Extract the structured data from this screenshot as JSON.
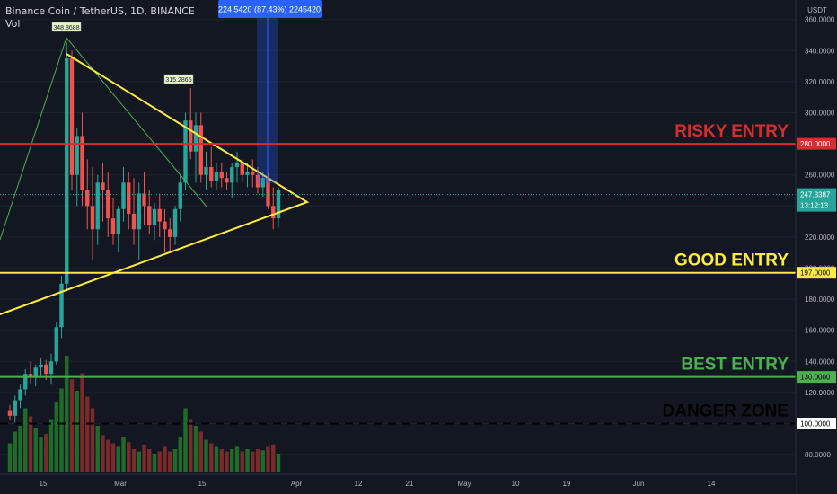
{
  "header": {
    "title": "Binance Coin / TetherUS, 1D, BINANCE",
    "indicator": "Vol"
  },
  "colors": {
    "background": "#131722",
    "up": "#26a69a",
    "down": "#ef5350",
    "vol_up": "#1f6b2a",
    "vol_down": "#7a2a2a",
    "triangle": "#ffeb3b",
    "risky": "#d32f2f",
    "good": "#ffeb3b",
    "best": "#4caf50",
    "danger": "#000000",
    "measure": "#2962ff"
  },
  "chart_data": {
    "type": "candlestick",
    "symbol": "BNBUSDT",
    "currency_label": "USDT",
    "y_ticks": [
      80,
      100,
      120,
      140,
      160,
      180,
      200,
      220,
      240,
      260,
      280,
      300,
      320,
      340,
      360
    ],
    "y_tick_labels": [
      "80.0000",
      "100.0000",
      "120.0000",
      "140.0000",
      "160.0000",
      "180.0000",
      "200.0000",
      "220.0000",
      "240.0000",
      "260.0000",
      "280.0000",
      "300.0000",
      "320.0000",
      "340.0000",
      "360.0000"
    ],
    "x_ticks": [
      "15",
      "Mar",
      "15",
      "Apr",
      "12",
      "21",
      "May",
      "10",
      "19",
      "Jun",
      "14"
    ],
    "last_price": "247.3387",
    "countdown": "13:12:13",
    "candles": [
      [
        108,
        112,
        102,
        105
      ],
      [
        105,
        118,
        100,
        115
      ],
      [
        115,
        125,
        110,
        122
      ],
      [
        122,
        135,
        118,
        132
      ],
      [
        132,
        140,
        126,
        130
      ],
      [
        130,
        138,
        124,
        136
      ],
      [
        136,
        142,
        130,
        138
      ],
      [
        138,
        141,
        128,
        132
      ],
      [
        132,
        145,
        125,
        140
      ],
      [
        140,
        165,
        138,
        162
      ],
      [
        162,
        195,
        155,
        190
      ],
      [
        190,
        345,
        185,
        335
      ],
      [
        335,
        340,
        250,
        260
      ],
      [
        260,
        290,
        240,
        285
      ],
      [
        285,
        300,
        240,
        250
      ],
      [
        250,
        270,
        225,
        240
      ],
      [
        240,
        265,
        205,
        225
      ],
      [
        225,
        260,
        215,
        255
      ],
      [
        255,
        268,
        230,
        250
      ],
      [
        250,
        262,
        220,
        232
      ],
      [
        232,
        245,
        215,
        222
      ],
      [
        222,
        240,
        210,
        238
      ],
      [
        238,
        265,
        230,
        255
      ],
      [
        255,
        262,
        225,
        235
      ],
      [
        235,
        258,
        215,
        225
      ],
      [
        225,
        255,
        205,
        248
      ],
      [
        248,
        262,
        228,
        240
      ],
      [
        240,
        250,
        222,
        228
      ],
      [
        228,
        242,
        218,
        238
      ],
      [
        238,
        248,
        220,
        230
      ],
      [
        230,
        238,
        210,
        225
      ],
      [
        225,
        232,
        210,
        220
      ],
      [
        220,
        240,
        215,
        238
      ],
      [
        238,
        260,
        230,
        255
      ],
      [
        255,
        300,
        250,
        295
      ],
      [
        295,
        316,
        270,
        275
      ],
      [
        275,
        300,
        255,
        292
      ],
      [
        292,
        300,
        255,
        260
      ],
      [
        260,
        275,
        250,
        265
      ],
      [
        265,
        278,
        252,
        256
      ],
      [
        256,
        268,
        250,
        262
      ],
      [
        262,
        268,
        252,
        258
      ],
      [
        258,
        262,
        250,
        255
      ],
      [
        255,
        268,
        245,
        265
      ],
      [
        265,
        275,
        255,
        268
      ],
      [
        268,
        270,
        255,
        260
      ],
      [
        260,
        268,
        252,
        262
      ],
      [
        262,
        270,
        252,
        260
      ],
      [
        260,
        265,
        248,
        252
      ],
      [
        252,
        262,
        246,
        258
      ],
      [
        258,
        262,
        238,
        240
      ],
      [
        240,
        252,
        225,
        232
      ],
      [
        232,
        252,
        226,
        250
      ]
    ],
    "volumes": [
      [
        0.25,
        1
      ],
      [
        0.35,
        1
      ],
      [
        0.4,
        1
      ],
      [
        0.55,
        1
      ],
      [
        0.48,
        0
      ],
      [
        0.38,
        1
      ],
      [
        0.3,
        1
      ],
      [
        0.33,
        0
      ],
      [
        0.45,
        1
      ],
      [
        0.6,
        1
      ],
      [
        0.72,
        1
      ],
      [
        1.0,
        1
      ],
      [
        0.8,
        0
      ],
      [
        0.7,
        1
      ],
      [
        0.85,
        0
      ],
      [
        0.65,
        0
      ],
      [
        0.55,
        0
      ],
      [
        0.4,
        1
      ],
      [
        0.32,
        0
      ],
      [
        0.28,
        0
      ],
      [
        0.25,
        0
      ],
      [
        0.22,
        1
      ],
      [
        0.3,
        1
      ],
      [
        0.26,
        0
      ],
      [
        0.2,
        0
      ],
      [
        0.18,
        1
      ],
      [
        0.24,
        0
      ],
      [
        0.2,
        0
      ],
      [
        0.16,
        1
      ],
      [
        0.18,
        0
      ],
      [
        0.22,
        0
      ],
      [
        0.18,
        0
      ],
      [
        0.2,
        1
      ],
      [
        0.3,
        1
      ],
      [
        0.55,
        1
      ],
      [
        0.45,
        0
      ],
      [
        0.4,
        1
      ],
      [
        0.35,
        0
      ],
      [
        0.28,
        1
      ],
      [
        0.25,
        0
      ],
      [
        0.22,
        1
      ],
      [
        0.2,
        0
      ],
      [
        0.18,
        0
      ],
      [
        0.2,
        1
      ],
      [
        0.22,
        1
      ],
      [
        0.18,
        0
      ],
      [
        0.2,
        1
      ],
      [
        0.18,
        0
      ],
      [
        0.2,
        0
      ],
      [
        0.19,
        1
      ],
      [
        0.22,
        0
      ],
      [
        0.24,
        0
      ],
      [
        0.16,
        1
      ]
    ],
    "high_markers": [
      {
        "label": "348.8688",
        "price": 348.8688
      },
      {
        "label": "315.2865",
        "price": 315.2865
      }
    ],
    "horizontal_levels": [
      {
        "label": "RISKY ENTRY",
        "price": 280,
        "price_label": "280.0000",
        "style": "solid"
      },
      {
        "label": "GOOD ENTRY",
        "price": 197,
        "price_label": "197.0000",
        "style": "solid"
      },
      {
        "label": "BEST ENTRY",
        "price": 130,
        "price_label": "130.0000",
        "style": "solid"
      },
      {
        "label": "DANGER ZONE",
        "price": 100,
        "price_label": "100.0000",
        "style": "dashed"
      }
    ],
    "measure_label": "224.5420 (87.43%) 2245420"
  }
}
